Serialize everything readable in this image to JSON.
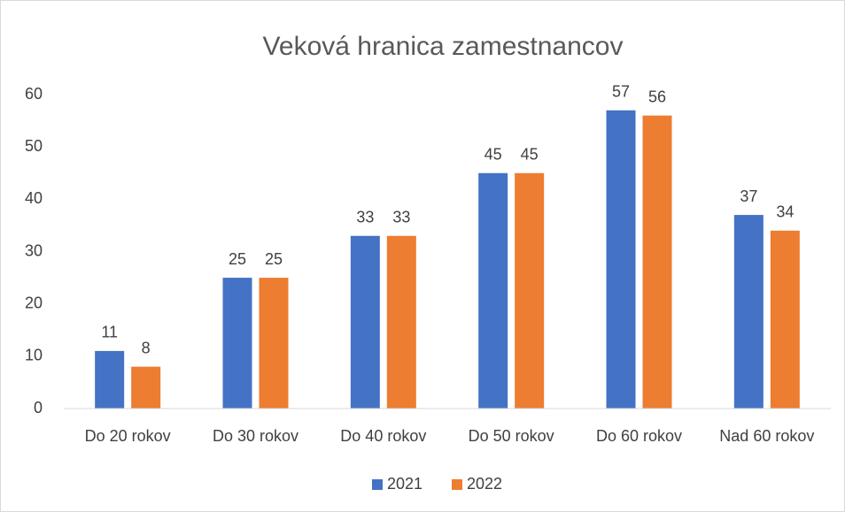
{
  "chart_data": {
    "type": "bar",
    "title": "Veková hranica zamestnancov",
    "categories": [
      "Do 20 rokov",
      "Do 30 rokov",
      "Do 40 rokov",
      "Do 50 rokov",
      "Do 60 rokov",
      "Nad 60 rokov"
    ],
    "series": [
      {
        "name": "2021",
        "color": "#4472c4",
        "values": [
          11,
          25,
          33,
          45,
          57,
          37
        ]
      },
      {
        "name": "2022",
        "color": "#ed7d31",
        "values": [
          8,
          25,
          33,
          45,
          56,
          34
        ]
      }
    ],
    "ylim": [
      0,
      60
    ],
    "yticks": [
      0,
      10,
      20,
      30,
      40,
      50,
      60
    ],
    "grid": false,
    "data_labels": true,
    "legend": "bottom"
  }
}
